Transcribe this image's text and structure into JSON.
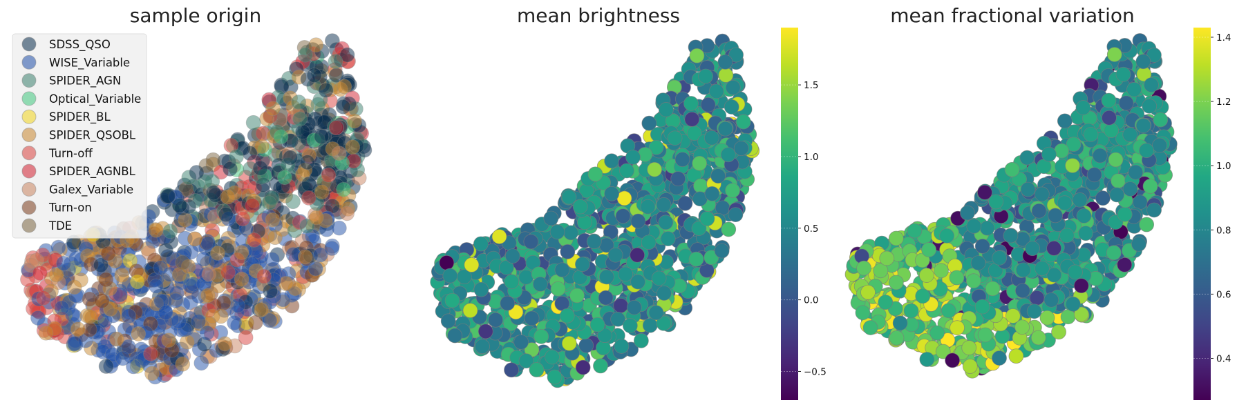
{
  "chart_data": [
    {
      "type": "scatter",
      "title": "sample origin",
      "xlabel": "",
      "ylabel": "",
      "grid": false,
      "axes_visible": false,
      "legend_position": "upper-left",
      "point_alpha": 0.5,
      "legend": [
        {
          "name": "SDSS_QSO",
          "color": "#0a2e4d"
        },
        {
          "name": "WISE_Variable",
          "color": "#1f4fa8"
        },
        {
          "name": "SPIDER_AGN",
          "color": "#3a7f6e"
        },
        {
          "name": "Optical_Variable",
          "color": "#3fc77d"
        },
        {
          "name": "SPIDER_BL",
          "color": "#f2d51c"
        },
        {
          "name": "SPIDER_QSOBL",
          "color": "#c8872f"
        },
        {
          "name": "Turn-off",
          "color": "#d9423e"
        },
        {
          "name": "SPIDER_AGNBL",
          "color": "#d11f30"
        },
        {
          "name": "Galex_Variable",
          "color": "#c9845f"
        },
        {
          "name": "Turn-on",
          "color": "#7a3a1a"
        },
        {
          "name": "TDE",
          "color": "#7a6440"
        }
      ],
      "series_mix": {
        "SDSS_QSO": "upper-right",
        "WISE_Variable": "lower-left",
        "SPIDER_QSOBL": "scattered",
        "Turn-off": "top-right and far-left",
        "SPIDER_AGN": "upper-right",
        "Turn-on": "lower-center"
      }
    },
    {
      "type": "scatter",
      "title": "mean brightness",
      "xlabel": "",
      "ylabel": "",
      "grid": false,
      "axes_visible": false,
      "colormap": "viridis",
      "colorbar": {
        "min": -0.7,
        "max": 1.9,
        "ticks": [
          -0.5,
          0.0,
          0.5,
          1.0,
          1.5
        ],
        "tick_labels": [
          "−0.5",
          "0.0",
          "0.5",
          "1.0",
          "1.5"
        ]
      },
      "value_distribution": {
        "typical": 0.55,
        "spread": 0.35,
        "min": -0.7,
        "max": 1.9
      }
    },
    {
      "type": "scatter",
      "title": "mean fractional variation",
      "xlabel": "",
      "ylabel": "",
      "grid": false,
      "axes_visible": false,
      "colormap": "viridis",
      "colorbar": {
        "min": 0.27,
        "max": 1.43,
        "ticks": [
          0.4,
          0.6,
          0.8,
          1.0,
          1.2,
          1.4
        ],
        "tick_labels": [
          "0.4",
          "0.6",
          "0.8",
          "1.0",
          "1.2",
          "1.4"
        ]
      },
      "value_distribution": {
        "left_region": 1.15,
        "upper_right_region": 0.85,
        "spread": 0.15,
        "min": 0.27,
        "max": 1.43
      }
    }
  ],
  "viridis": [
    "#440154",
    "#482475",
    "#414487",
    "#355f8d",
    "#2a788e",
    "#21918c",
    "#22a884",
    "#44bf70",
    "#7ad151",
    "#bddf26",
    "#fde725"
  ]
}
